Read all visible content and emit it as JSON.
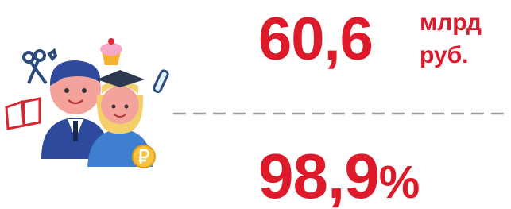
{
  "stat1": {
    "value": "60,6",
    "unit_line1": "млрд",
    "unit_line2": "руб."
  },
  "stat2": {
    "value": "98,9",
    "unit": "%"
  }
}
